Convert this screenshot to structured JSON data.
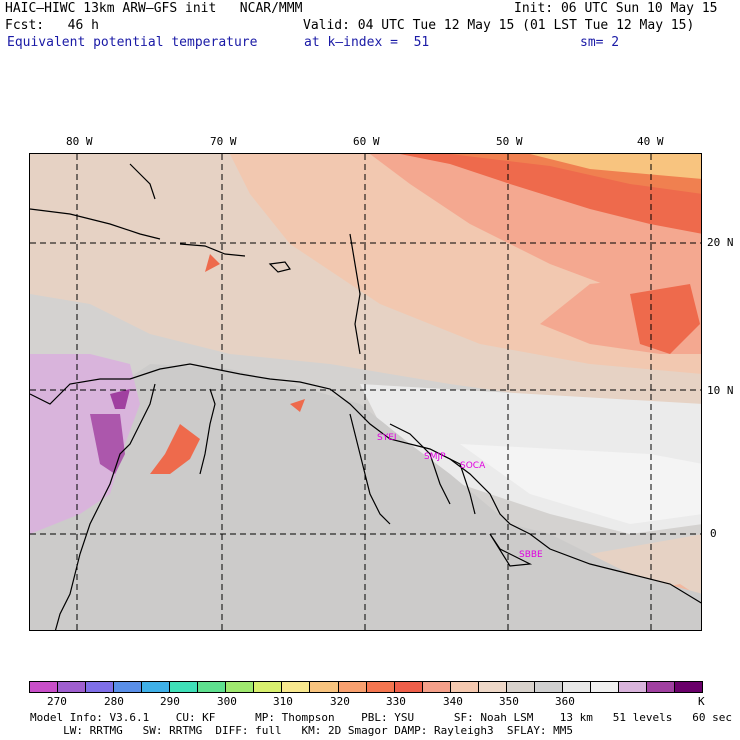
{
  "header": {
    "model_line": "HAIC–HIWC 13km ARW–GFS init   NCAR/MMM",
    "fcst_line": "Fcst:   46 h",
    "field_line": "Equivalent potential temperature",
    "init_line": "Init: 06 UTC Sun 10 May 15",
    "valid_line": "Valid: 04 UTC Tue 12 May 15 (01 LST Tue 12 May 15)",
    "kindex_line": "at k–index =  51",
    "sm_line": "sm= 2"
  },
  "map": {
    "lon_labels": [
      "80 W",
      "70 W",
      "60 W",
      "50 W",
      "40 W"
    ],
    "lat_labels": [
      "20 N",
      "10 N",
      "0"
    ],
    "stations": [
      "SYEI",
      "SMJP",
      "SOCA",
      "SBBE"
    ]
  },
  "colorbar": {
    "colors": [
      "#c94fc9",
      "#9f5fcf",
      "#7f6fe8",
      "#5a8fe8",
      "#3fb0e8",
      "#3fe0b8",
      "#5fe08f",
      "#9fe86f",
      "#d8f06f",
      "#f8e88f",
      "#f8c47f",
      "#f8a06f",
      "#f47650",
      "#ee5f4a",
      "#f4a08a",
      "#f5c9b0",
      "#eed8c8",
      "#d8d2cc",
      "#d0d0d0",
      "#e8e8e8",
      "#f0f0f0",
      "#d9b4dc",
      "#a040a0",
      "#6a006a"
    ],
    "labels": [
      "270",
      "280",
      "290",
      "300",
      "310",
      "320",
      "330",
      "340",
      "350",
      "360",
      "K"
    ]
  },
  "footer": {
    "line1": "Model Info: V3.6.1    CU: KF      MP: Thompson    PBL: YSU      SF: Noah LSM    13 km   51 levels   60 sec",
    "line2": "     LW: RRTMG   SW: RRTMG  DIFF: full   KM: 2D Smagor DAMP: Rayleigh3  SFLAY: MM5"
  }
}
